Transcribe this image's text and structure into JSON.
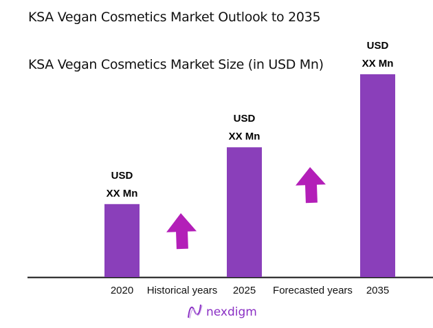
{
  "chart_data": {
    "type": "bar",
    "title": "KSA Vegan Cosmetics Market Outlook to 2035",
    "subtitle": "KSA Vegan Cosmetics Market Size (in USD Mn)",
    "categories": [
      "2020",
      "2025",
      "2035"
    ],
    "values": [
      36,
      64,
      100
    ],
    "data_labels": [
      [
        "USD",
        "XX Mn"
      ],
      [
        "USD",
        "XX Mn"
      ],
      [
        "USD",
        "XX Mn"
      ]
    ],
    "period_labels": [
      "Historical years",
      "Forecasted years"
    ],
    "grid": false,
    "bar_color": "#8a3fba",
    "arrow_color": "#b31fb8",
    "arrow_icons": [
      "up-arrow-icon",
      "up-arrow-icon"
    ]
  },
  "logo": {
    "text": "nexdigm",
    "color": "#8a2fc4"
  }
}
